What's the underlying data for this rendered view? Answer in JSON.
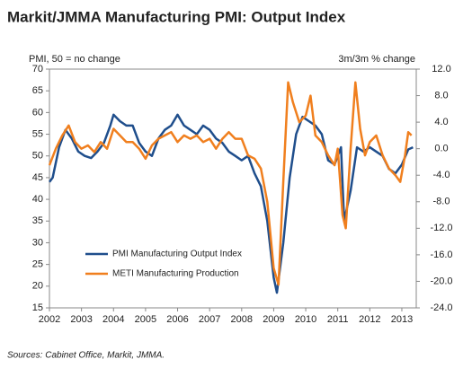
{
  "chart_data": {
    "type": "line",
    "title": "Markit/JMMA Manufacturing PMI: Output Index",
    "ylabel": "PMI, 50 = no change",
    "y2label": "3m/3m  % change",
    "source": "Sources: Cabinet Office, Markit, JMMA.",
    "xlim": [
      2002,
      2013.45
    ],
    "xticks": [
      2002,
      2003,
      2004,
      2005,
      2006,
      2007,
      2008,
      2009,
      2010,
      2011,
      2012,
      2013
    ],
    "ylim": [
      15,
      70
    ],
    "yticks": [
      15,
      20,
      25,
      30,
      35,
      40,
      45,
      50,
      55,
      60,
      65,
      70
    ],
    "y2lim": [
      -24,
      12
    ],
    "y2ticks": [
      {
        "value": -24,
        "label": "-24.0"
      },
      {
        "value": -20,
        "label": "-20.0"
      },
      {
        "value": -16,
        "label": "-16.0"
      },
      {
        "value": -12,
        "label": "-12.0"
      },
      {
        "value": -8,
        "label": "-8.0"
      },
      {
        "value": -4,
        "label": "-4.0"
      },
      {
        "value": 0,
        "label": "0.0"
      },
      {
        "value": 4,
        "label": "4.0"
      },
      {
        "value": 8,
        "label": "8.0"
      },
      {
        "value": 12,
        "label": "12.0"
      }
    ],
    "legend": "lower-left",
    "series": [
      {
        "name": "PMI Manufacturing Output Index",
        "color": "#1f4e8c",
        "axis": "y",
        "x": [
          2002.0,
          2002.1,
          2002.3,
          2002.5,
          2002.7,
          2002.9,
          2003.1,
          2003.3,
          2003.5,
          2003.7,
          2003.9,
          2004.0,
          2004.2,
          2004.4,
          2004.6,
          2004.8,
          2005.0,
          2005.2,
          2005.4,
          2005.6,
          2005.8,
          2006.0,
          2006.2,
          2006.4,
          2006.6,
          2006.8,
          2007.0,
          2007.2,
          2007.4,
          2007.6,
          2007.8,
          2008.0,
          2008.2,
          2008.4,
          2008.6,
          2008.8,
          2009.0,
          2009.1,
          2009.3,
          2009.5,
          2009.7,
          2009.9,
          2010.1,
          2010.3,
          2010.5,
          2010.7,
          2010.9,
          2011.1,
          2011.2,
          2011.4,
          2011.6,
          2011.8,
          2012.0,
          2012.2,
          2012.4,
          2012.6,
          2012.8,
          2013.0,
          2013.2,
          2013.35
        ],
        "values": [
          44,
          45,
          52,
          56,
          54,
          51,
          50,
          49.5,
          51,
          53,
          57,
          59.5,
          58,
          57,
          57,
          53,
          51,
          50,
          54,
          56,
          57,
          59.5,
          57,
          56,
          55,
          57,
          56,
          54,
          53,
          51,
          50,
          49,
          50,
          46,
          43,
          35,
          22,
          18.5,
          30,
          45,
          55,
          59,
          58,
          57,
          55,
          49,
          48,
          52,
          35,
          42,
          52,
          51,
          52,
          51,
          50,
          47,
          46,
          48,
          51.5,
          52
        ]
      },
      {
        "name": "METI Manufacturing Production",
        "color": "#f07f1e",
        "axis": "y2",
        "x": [
          2002.0,
          2002.2,
          2002.4,
          2002.6,
          2002.8,
          2003.0,
          2003.2,
          2003.4,
          2003.6,
          2003.8,
          2004.0,
          2004.2,
          2004.4,
          2004.6,
          2004.8,
          2005.0,
          2005.2,
          2005.4,
          2005.6,
          2005.8,
          2006.0,
          2006.2,
          2006.4,
          2006.6,
          2006.8,
          2007.0,
          2007.2,
          2007.4,
          2007.6,
          2007.8,
          2008.0,
          2008.2,
          2008.4,
          2008.6,
          2008.8,
          2009.0,
          2009.15,
          2009.3,
          2009.45,
          2009.6,
          2009.8,
          2010.0,
          2010.15,
          2010.3,
          2010.5,
          2010.7,
          2010.9,
          2011.0,
          2011.15,
          2011.25,
          2011.4,
          2011.55,
          2011.7,
          2011.85,
          2012.0,
          2012.2,
          2012.4,
          2012.6,
          2012.8,
          2012.95,
          2013.1,
          2013.2,
          2013.3
        ],
        "values": [
          -2.5,
          0,
          2,
          3.5,
          1,
          0,
          0.5,
          -0.5,
          1,
          0,
          3,
          2,
          1,
          1,
          0,
          -1.5,
          0.5,
          1.5,
          2,
          2.5,
          1,
          2,
          1.5,
          2,
          1,
          1.5,
          0,
          1.5,
          2.5,
          1.5,
          1.5,
          -1,
          -1.5,
          -3,
          -8,
          -18,
          -20.5,
          -5,
          10,
          7,
          4,
          5,
          8,
          2,
          1,
          -1,
          -2.5,
          0,
          -10,
          -12,
          0,
          10,
          3,
          -1,
          1,
          2,
          -1,
          -3,
          -4,
          -5,
          -1,
          2.5,
          2
        ]
      }
    ]
  }
}
